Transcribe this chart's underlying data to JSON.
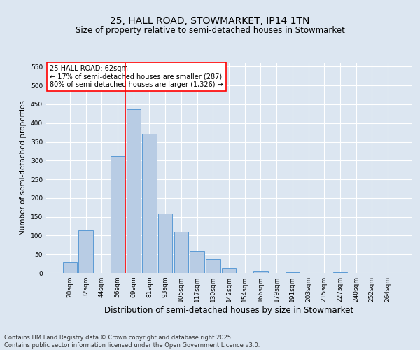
{
  "title": "25, HALL ROAD, STOWMARKET, IP14 1TN",
  "subtitle": "Size of property relative to semi-detached houses in Stowmarket",
  "xlabel": "Distribution of semi-detached houses by size in Stowmarket",
  "ylabel": "Number of semi-detached properties",
  "bar_labels": [
    "20sqm",
    "32sqm",
    "44sqm",
    "56sqm",
    "69sqm",
    "81sqm",
    "93sqm",
    "105sqm",
    "117sqm",
    "130sqm",
    "142sqm",
    "154sqm",
    "166sqm",
    "179sqm",
    "191sqm",
    "203sqm",
    "215sqm",
    "227sqm",
    "240sqm",
    "252sqm",
    "264sqm"
  ],
  "bar_values": [
    28,
    113,
    0,
    312,
    437,
    372,
    158,
    110,
    58,
    38,
    13,
    0,
    5,
    0,
    2,
    0,
    0,
    1,
    0,
    0,
    0
  ],
  "bar_color": "#b8cce4",
  "bar_edge_color": "#5b9bd5",
  "background_color": "#dce6f1",
  "grid_color": "#ffffff",
  "vline_x": 3.5,
  "vline_color": "red",
  "annotation_text": "25 HALL ROAD: 62sqm\n← 17% of semi-detached houses are smaller (287)\n80% of semi-detached houses are larger (1,326) →",
  "annotation_box_color": "white",
  "annotation_box_edge": "red",
  "ylim": [
    0,
    560
  ],
  "yticks": [
    0,
    50,
    100,
    150,
    200,
    250,
    300,
    350,
    400,
    450,
    500,
    550
  ],
  "footnote": "Contains HM Land Registry data © Crown copyright and database right 2025.\nContains public sector information licensed under the Open Government Licence v3.0.",
  "title_fontsize": 10,
  "subtitle_fontsize": 8.5,
  "xlabel_fontsize": 8.5,
  "ylabel_fontsize": 7.5,
  "tick_fontsize": 6.5,
  "annotation_fontsize": 7,
  "footnote_fontsize": 6
}
